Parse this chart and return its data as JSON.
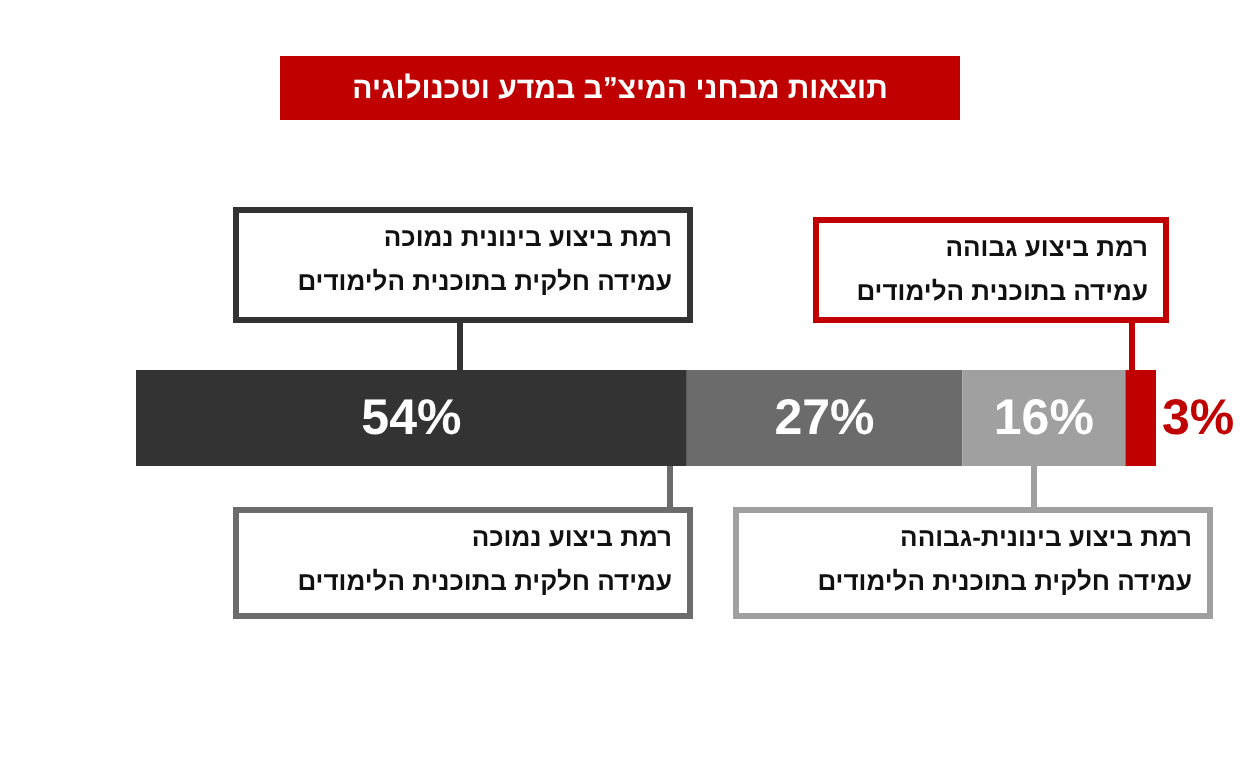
{
  "chart_data": {
    "type": "bar",
    "title": "תוצאות מבחני המיצ”ב במדע וטכנולוגיה",
    "orientation": "horizontal",
    "stacked": true,
    "categories": [
      null
    ],
    "series": [
      {
        "color": "#333333",
        "values": [
          54
        ],
        "value_labels": [
          "54%"
        ]
      },
      {
        "color": "#6b6b6b",
        "values": [
          27
        ],
        "value_labels": [
          "27%"
        ]
      },
      {
        "color": "#a0a0a0",
        "values": [
          16
        ],
        "value_labels": [
          "16%"
        ]
      },
      {
        "color": "#c00000",
        "values": [
          3
        ],
        "value_labels": [
          "3%"
        ]
      }
    ],
    "annotations": [
      "רמת ביצוע בינונית נמוכה\nעמידה חלקית בתוכנית הלימודים",
      "רמת ביצוע נמוכה\nעמידה חלקית בתוכנית הלימודים",
      "רמת ביצוע בינונית-גבוהה\nעמידה חלקית בתוכנית הלימודים",
      "רמת ביצוע גבוהה\nעמידה בתוכנית הלימודים"
    ]
  }
}
